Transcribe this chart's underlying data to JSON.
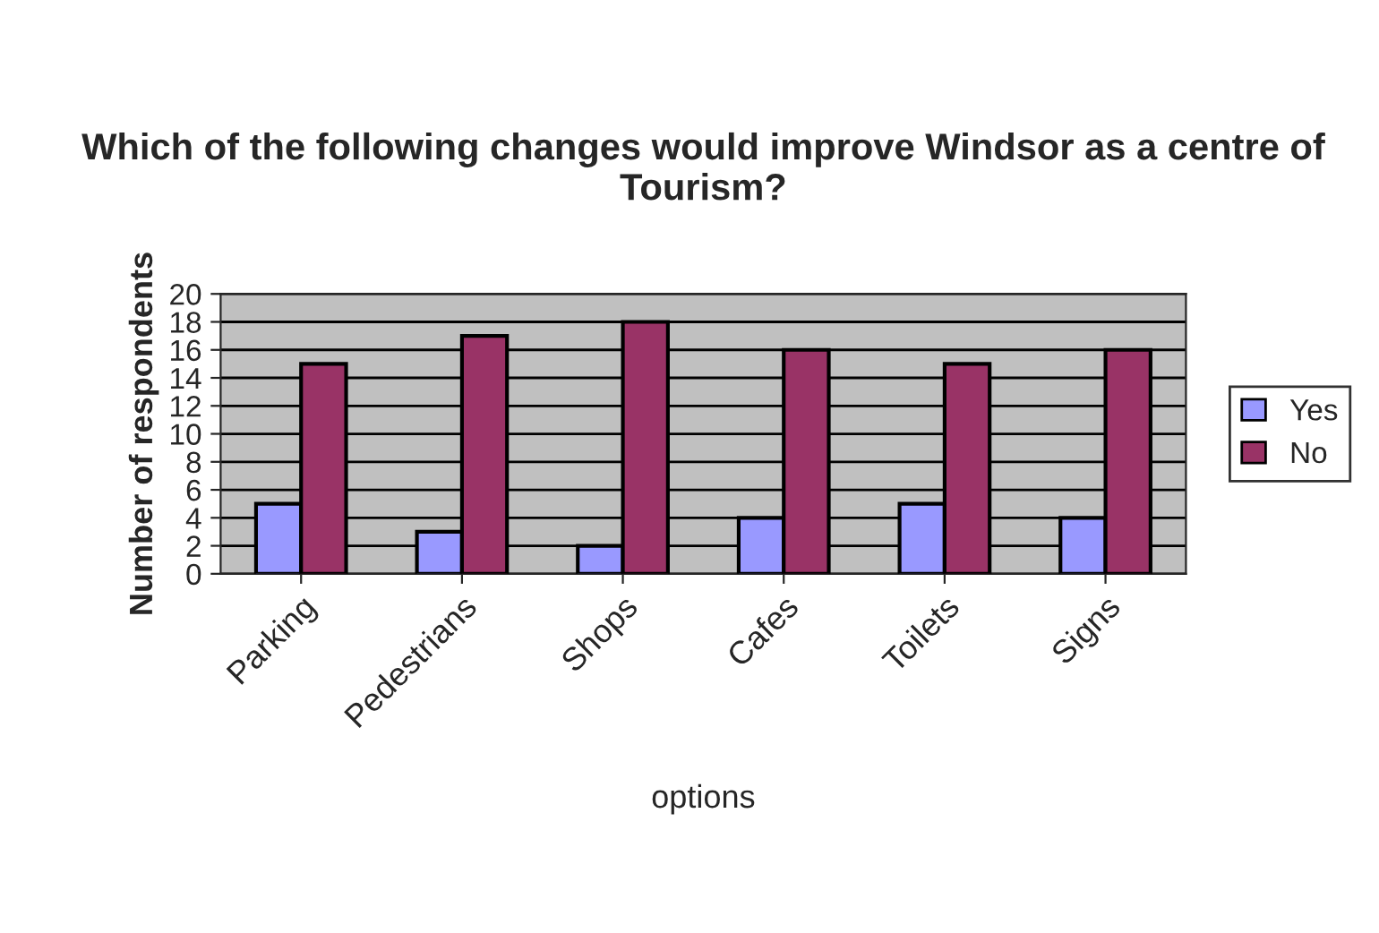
{
  "chart_data": {
    "type": "bar",
    "title": "Which of the following changes would improve Windsor as a centre of Tourism?",
    "xlabel": "options",
    "ylabel": "Number of respondents",
    "categories": [
      "Parking",
      "Pedestrians",
      "Shops",
      "Cafes",
      "Toilets",
      "Signs"
    ],
    "series": [
      {
        "name": "Yes",
        "color": "#9999ff",
        "values": [
          5,
          3,
          2,
          4,
          5,
          4
        ]
      },
      {
        "name": "No",
        "color": "#993366",
        "values": [
          15,
          17,
          18,
          16,
          15,
          16
        ]
      }
    ],
    "ylim": [
      0,
      20
    ],
    "yticks": [
      0,
      2,
      4,
      6,
      8,
      10,
      12,
      14,
      16,
      18,
      20
    ],
    "grid": "y",
    "legend": "right"
  }
}
